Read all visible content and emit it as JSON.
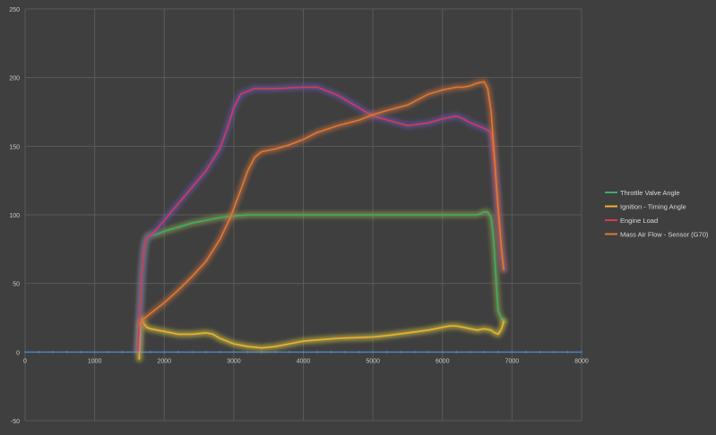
{
  "chart_data": {
    "type": "line",
    "title": "",
    "xlabel": "",
    "ylabel": "",
    "xlim": [
      0,
      8000
    ],
    "ylim": [
      -50,
      250
    ],
    "x_ticks": [
      0,
      1000,
      2000,
      3000,
      4000,
      5000,
      6000,
      7000,
      8000
    ],
    "y_ticks": [
      -50,
      0,
      50,
      100,
      150,
      200,
      250
    ],
    "grid": true,
    "legend_position": "right",
    "colors": {
      "background": "#3f3f3f",
      "grid": "#5a5a5a",
      "zero_axis": "#4f81bd",
      "tick_text": "#c8c8c8",
      "legend_text": "#d8d8d8"
    },
    "series": [
      {
        "name": "Throttle Valve Angle",
        "color": "#3cae6a",
        "glow": "#8fa84a",
        "x": [
          1620,
          1640,
          1660,
          1680,
          1700,
          1720,
          1740,
          1760,
          1780,
          1800,
          1900,
          2000,
          2200,
          2400,
          2600,
          2800,
          3000,
          3200,
          3500,
          4000,
          4500,
          5000,
          5500,
          6000,
          6300,
          6500,
          6600,
          6650,
          6700,
          6720,
          6740,
          6760,
          6780,
          6800,
          6850,
          6880
        ],
        "y": [
          1,
          20,
          40,
          58,
          70,
          78,
          82,
          84,
          85,
          85,
          86,
          88,
          91,
          94,
          96,
          98,
          99,
          100,
          100,
          100,
          100,
          100,
          100,
          100,
          100,
          100,
          102,
          102,
          98,
          90,
          78,
          62,
          45,
          30,
          24,
          23
        ]
      },
      {
        "name": "Ignition - Timing Angle",
        "color": "#f0b030",
        "glow": "#d8cc40",
        "x": [
          1640,
          1650,
          1660,
          1680,
          1700,
          1750,
          1800,
          1900,
          2000,
          2200,
          2400,
          2600,
          2700,
          2800,
          3000,
          3200,
          3400,
          3600,
          3800,
          4000,
          4500,
          5000,
          5200,
          5500,
          5800,
          6000,
          6100,
          6200,
          6300,
          6400,
          6500,
          6600,
          6700,
          6750,
          6800,
          6850,
          6880
        ],
        "y": [
          -5,
          8,
          20,
          24,
          21,
          18,
          17,
          16,
          15,
          13,
          13,
          14,
          13,
          10,
          6,
          4,
          3,
          4,
          6,
          8,
          10,
          11,
          12,
          14,
          16,
          18,
          19,
          19,
          18,
          17,
          16,
          17,
          16,
          14,
          13,
          17,
          22
        ]
      },
      {
        "name": "Engine Load",
        "color": "#d83a4a",
        "glow": "#6a58c8",
        "x": [
          1620,
          1640,
          1660,
          1680,
          1700,
          1720,
          1740,
          1760,
          1780,
          1800,
          1900,
          2000,
          2200,
          2400,
          2600,
          2800,
          2900,
          3000,
          3100,
          3300,
          3600,
          4000,
          4200,
          4500,
          4800,
          5000,
          5500,
          5800,
          6000,
          6200,
          6300,
          6400,
          6500,
          6600,
          6700,
          6750,
          6800,
          6850,
          6880
        ],
        "y": [
          1,
          20,
          40,
          58,
          70,
          78,
          82,
          84,
          85,
          85,
          90,
          96,
          108,
          120,
          132,
          148,
          162,
          178,
          188,
          192,
          192,
          193,
          193,
          187,
          178,
          172,
          165,
          167,
          170,
          172,
          170,
          167,
          165,
          163,
          160,
          135,
          100,
          72,
          60
        ]
      },
      {
        "name": "Mass Air Flow - Sensor (G70)",
        "color": "#e07830",
        "glow": "#c87040",
        "x": [
          1650,
          1700,
          1800,
          1900,
          2000,
          2200,
          2400,
          2600,
          2800,
          2950,
          3100,
          3200,
          3300,
          3400,
          3600,
          3800,
          4000,
          4200,
          4500,
          4800,
          5000,
          5200,
          5500,
          5800,
          6000,
          6200,
          6300,
          6400,
          6500,
          6600,
          6650,
          6700,
          6750,
          6800,
          6850,
          6880
        ],
        "y": [
          20,
          24,
          28,
          32,
          36,
          45,
          55,
          66,
          82,
          98,
          118,
          132,
          142,
          146,
          148,
          151,
          155,
          160,
          165,
          169,
          173,
          176,
          180,
          188,
          191,
          193,
          193,
          194,
          196,
          197,
          192,
          175,
          140,
          105,
          75,
          60
        ]
      }
    ]
  }
}
